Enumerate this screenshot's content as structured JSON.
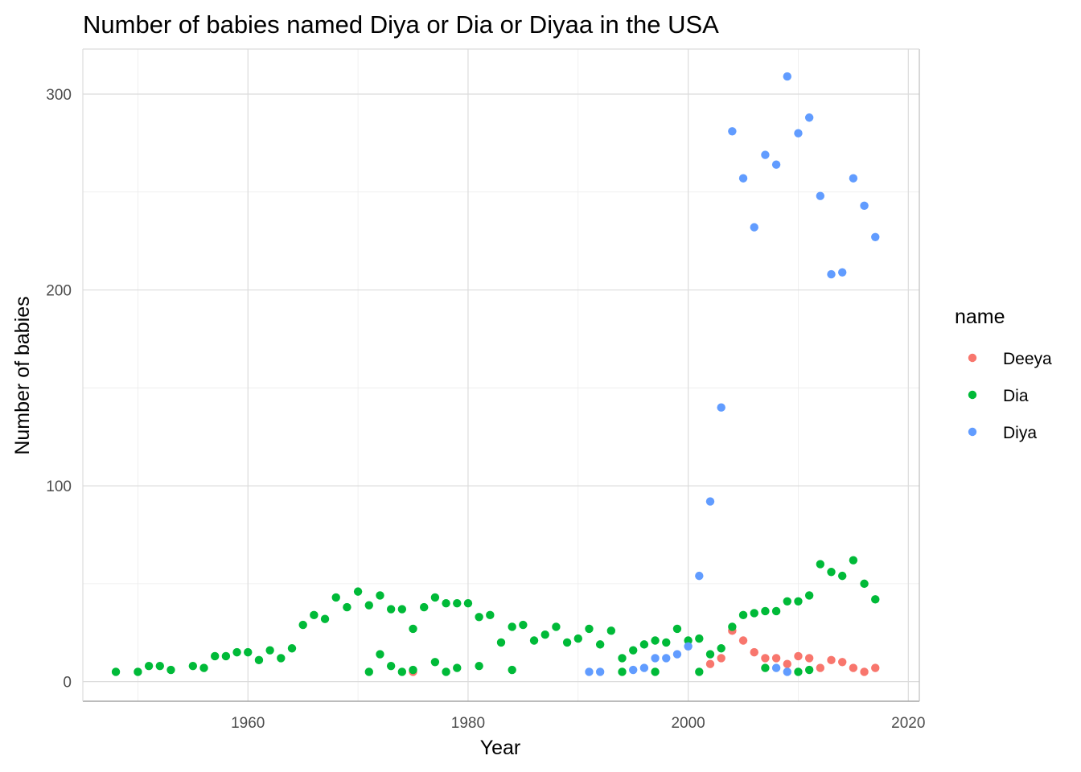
{
  "chart_data": {
    "type": "scatter",
    "title": "Number of babies named Diya or Dia or Diyaa in the USA",
    "xlabel": "Year",
    "ylabel": "Number of babies",
    "xlim": [
      1945,
      2021
    ],
    "ylim": [
      -10,
      323
    ],
    "xticks": [
      1960,
      1980,
      2000,
      2020
    ],
    "yticks": [
      0,
      100,
      200,
      300
    ],
    "xtick_labels": [
      "1960",
      "1980",
      "2000",
      "2020"
    ],
    "ytick_labels": [
      "0",
      "100",
      "200",
      "300"
    ],
    "grid": true,
    "legend": {
      "title": "name",
      "position": "right"
    },
    "series": [
      {
        "name": "Deeya",
        "color": "#F8766D",
        "points": [
          [
            1975,
            5
          ],
          [
            2002,
            9
          ],
          [
            2003,
            12
          ],
          [
            2004,
            26
          ],
          [
            2005,
            21
          ],
          [
            2006,
            15
          ],
          [
            2007,
            12
          ],
          [
            2008,
            12
          ],
          [
            2009,
            9
          ],
          [
            2010,
            13
          ],
          [
            2011,
            12
          ],
          [
            2012,
            7
          ],
          [
            2013,
            11
          ],
          [
            2014,
            10
          ],
          [
            2015,
            7
          ],
          [
            2016,
            5
          ],
          [
            2017,
            7
          ]
        ]
      },
      {
        "name": "Dia",
        "color": "#00BA38",
        "points": [
          [
            1948,
            5
          ],
          [
            1950,
            5
          ],
          [
            1951,
            8
          ],
          [
            1952,
            8
          ],
          [
            1953,
            6
          ],
          [
            1955,
            8
          ],
          [
            1956,
            7
          ],
          [
            1957,
            13
          ],
          [
            1958,
            13
          ],
          [
            1959,
            15
          ],
          [
            1960,
            15
          ],
          [
            1961,
            11
          ],
          [
            1962,
            16
          ],
          [
            1963,
            12
          ],
          [
            1964,
            17
          ],
          [
            1965,
            29
          ],
          [
            1966,
            34
          ],
          [
            1967,
            32
          ],
          [
            1968,
            43
          ],
          [
            1969,
            38
          ],
          [
            1970,
            46
          ],
          [
            1971,
            39
          ],
          [
            1971,
            5
          ],
          [
            1972,
            44
          ],
          [
            1972,
            14
          ],
          [
            1973,
            37
          ],
          [
            1973,
            8
          ],
          [
            1974,
            37
          ],
          [
            1974,
            5
          ],
          [
            1975,
            27
          ],
          [
            1975,
            6
          ],
          [
            1976,
            38
          ],
          [
            1977,
            43
          ],
          [
            1977,
            10
          ],
          [
            1978,
            40
          ],
          [
            1978,
            5
          ],
          [
            1979,
            40
          ],
          [
            1979,
            7
          ],
          [
            1980,
            40
          ],
          [
            1981,
            33
          ],
          [
            1981,
            8
          ],
          [
            1982,
            34
          ],
          [
            1983,
            20
          ],
          [
            1984,
            28
          ],
          [
            1984,
            6
          ],
          [
            1985,
            29
          ],
          [
            1986,
            21
          ],
          [
            1987,
            24
          ],
          [
            1988,
            28
          ],
          [
            1989,
            20
          ],
          [
            1990,
            22
          ],
          [
            1991,
            27
          ],
          [
            1992,
            19
          ],
          [
            1993,
            26
          ],
          [
            1994,
            12
          ],
          [
            1994,
            5
          ],
          [
            1995,
            16
          ],
          [
            1996,
            19
          ],
          [
            1997,
            21
          ],
          [
            1997,
            5
          ],
          [
            1998,
            20
          ],
          [
            1999,
            27
          ],
          [
            2000,
            21
          ],
          [
            2001,
            22
          ],
          [
            2001,
            5
          ],
          [
            2002,
            14
          ],
          [
            2003,
            17
          ],
          [
            2004,
            28
          ],
          [
            2005,
            34
          ],
          [
            2006,
            35
          ],
          [
            2007,
            36
          ],
          [
            2007,
            7
          ],
          [
            2008,
            36
          ],
          [
            2009,
            41
          ],
          [
            2010,
            41
          ],
          [
            2010,
            5
          ],
          [
            2011,
            44
          ],
          [
            2011,
            6
          ],
          [
            2012,
            60
          ],
          [
            2013,
            56
          ],
          [
            2014,
            54
          ],
          [
            2015,
            62
          ],
          [
            2016,
            50
          ],
          [
            2017,
            42
          ]
        ]
      },
      {
        "name": "Diya",
        "color": "#619CFF",
        "points": [
          [
            1991,
            5
          ],
          [
            1992,
            5
          ],
          [
            1995,
            6
          ],
          [
            1996,
            7
          ],
          [
            1997,
            12
          ],
          [
            1998,
            12
          ],
          [
            1999,
            14
          ],
          [
            2000,
            18
          ],
          [
            2001,
            54
          ],
          [
            2002,
            92
          ],
          [
            2003,
            140
          ],
          [
            2004,
            281
          ],
          [
            2005,
            257
          ],
          [
            2006,
            232
          ],
          [
            2007,
            269
          ],
          [
            2008,
            264
          ],
          [
            2008,
            7
          ],
          [
            2009,
            309
          ],
          [
            2009,
            5
          ],
          [
            2010,
            280
          ],
          [
            2011,
            288
          ],
          [
            2012,
            248
          ],
          [
            2013,
            208
          ],
          [
            2014,
            209
          ],
          [
            2015,
            257
          ],
          [
            2016,
            243
          ],
          [
            2017,
            227
          ]
        ]
      }
    ]
  }
}
